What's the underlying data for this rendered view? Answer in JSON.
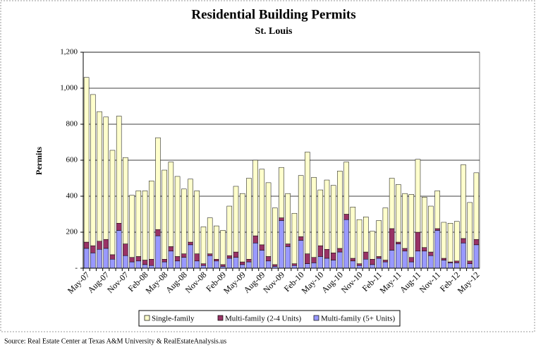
{
  "chart_data": {
    "type": "bar",
    "stacked": true,
    "title": "Residential Building Permits",
    "subtitle": "St. Louis",
    "y_label": "Permits",
    "source": "Source: Real Estate Center at Texas A&M University & RealEstateAnalysis.us",
    "categories": [
      "May-07",
      null,
      null,
      "Aug-07",
      null,
      null,
      "Nov-07",
      null,
      null,
      "Feb-08",
      null,
      null,
      "May-08",
      null,
      null,
      "Aug-08",
      null,
      null,
      "Nov-08",
      null,
      null,
      "Feb-09",
      null,
      null,
      "May-09",
      null,
      null,
      "Aug-09",
      null,
      null,
      "Nov-09",
      null,
      null,
      "Feb-10",
      null,
      null,
      "May-10",
      null,
      null,
      "Aug-10",
      null,
      null,
      "Nov-10",
      null,
      null,
      "Feb-11",
      null,
      null,
      "May-11",
      null,
      null,
      "Aug-11",
      null,
      null,
      "Nov-11",
      null,
      null,
      "Feb-12",
      null,
      null,
      "May-12"
    ],
    "series": [
      {
        "name": "Multi-family (5+ Units)",
        "color": "#9999ff",
        "values": [
          110,
          85,
          105,
          110,
          50,
          210,
          70,
          35,
          40,
          20,
          15,
          180,
          35,
          95,
          40,
          60,
          130,
          40,
          15,
          70,
          40,
          10,
          55,
          60,
          20,
          35,
          140,
          100,
          40,
          10,
          265,
          120,
          15,
          155,
          25,
          30,
          65,
          55,
          45,
          90,
          270,
          40,
          15,
          50,
          20,
          55,
          35,
          100,
          135,
          95,
          35,
          95,
          95,
          70,
          210,
          45,
          30,
          30,
          140,
          25,
          130
        ]
      },
      {
        "name": "Multi-family (2-4 Units)",
        "color": "#993366",
        "values": [
          35,
          40,
          45,
          50,
          25,
          40,
          65,
          25,
          25,
          25,
          35,
          35,
          15,
          25,
          25,
          20,
          15,
          40,
          10,
          10,
          10,
          10,
          15,
          30,
          15,
          15,
          40,
          30,
          25,
          10,
          15,
          15,
          10,
          20,
          55,
          30,
          60,
          50,
          40,
          20,
          30,
          15,
          10,
          40,
          30,
          10,
          10,
          120,
          10,
          15,
          25,
          105,
          20,
          20,
          10,
          10,
          5,
          10,
          25,
          15,
          30
        ]
      },
      {
        "name": "Single-family",
        "color": "#ffffcc",
        "values": [
          915,
          840,
          720,
          680,
          580,
          595,
          480,
          345,
          365,
          385,
          435,
          510,
          495,
          470,
          445,
          360,
          350,
          350,
          205,
          200,
          185,
          190,
          275,
          365,
          380,
          450,
          420,
          420,
          410,
          315,
          280,
          280,
          280,
          340,
          565,
          445,
          310,
          385,
          375,
          430,
          290,
          285,
          245,
          195,
          155,
          200,
          290,
          280,
          320,
          305,
          350,
          405,
          280,
          255,
          210,
          200,
          215,
          220,
          410,
          325,
          370
        ]
      }
    ],
    "legend_order": [
      2,
      1,
      0
    ],
    "ylim": [
      0,
      1200
    ],
    "yticks": [
      {
        "value": 0,
        "label": "-"
      },
      200,
      400,
      600,
      800,
      {
        "value": 1000,
        "label": "1,000"
      },
      {
        "value": 1200,
        "label": "1,200"
      }
    ],
    "grid": true,
    "legend": "bottom"
  }
}
